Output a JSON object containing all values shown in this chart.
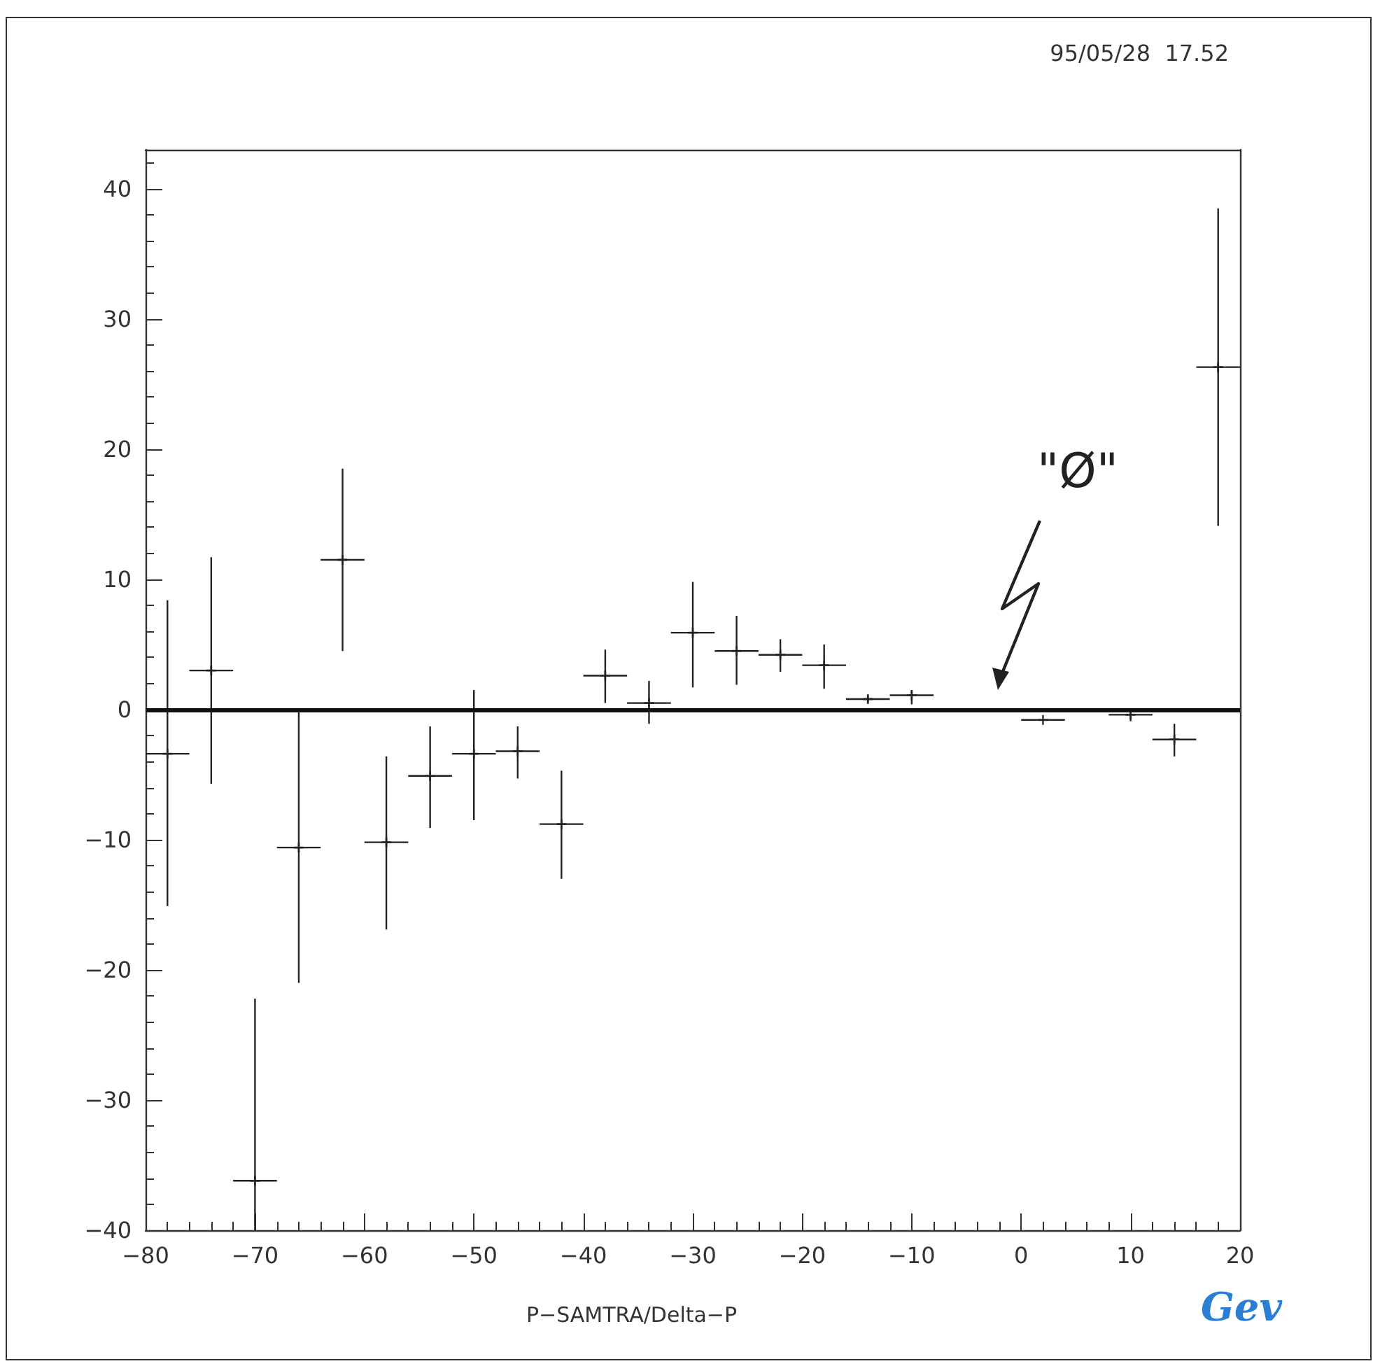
{
  "chart_data": {
    "type": "scatter",
    "xlabel": "P−SAMTRA/Delta−P",
    "marker": "cross",
    "grid": false,
    "legend": false,
    "x": [
      -78,
      -74,
      -70,
      -66,
      -62,
      -58,
      -54,
      -50,
      -46,
      -42,
      -38,
      -34,
      -30,
      -26,
      -22,
      -18,
      -14,
      -10,
      2,
      10,
      14,
      18
    ],
    "values": [
      -3.4,
      3.0,
      -36.2,
      -10.6,
      11.5,
      -10.2,
      -5.1,
      -3.4,
      -3.2,
      -8.8,
      2.6,
      0.5,
      5.9,
      4.5,
      4.2,
      3.4,
      0.8,
      1.1,
      -0.8,
      -0.4,
      -2.3,
      26.3
    ],
    "errors": [
      [
        -15.1,
        8.4
      ],
      [
        -5.7,
        11.7
      ],
      [
        -40,
        -22.2
      ],
      [
        -21,
        -0.2
      ],
      [
        4.5,
        18.5
      ],
      [
        -16.9,
        -3.6
      ],
      [
        -9.1,
        -1.3
      ],
      [
        -8.5,
        1.5
      ],
      [
        -5.3,
        -1.3
      ],
      [
        -13,
        -4.7
      ],
      [
        0.5,
        4.6
      ],
      [
        -1.1,
        2.2
      ],
      [
        1.7,
        9.8
      ],
      [
        1.9,
        7.2
      ],
      [
        2.9,
        5.4
      ],
      [
        1.6,
        5.0
      ],
      [
        0.5,
        1.1
      ],
      [
        0.4,
        1.5
      ],
      null,
      [
        -0.9,
        0
      ],
      [
        -3.6,
        -1.1
      ],
      [
        14.1,
        38.5
      ]
    ],
    "xerrors": [
      2,
      2,
      2,
      2,
      2,
      2,
      2,
      2,
      2,
      2,
      2,
      2,
      2,
      2,
      2,
      2,
      2,
      2,
      2,
      2,
      2,
      2
    ],
    "color": "#222222",
    "xlim": [
      -80,
      20
    ],
    "xticks": [
      -80,
      -70,
      -60,
      -50,
      -40,
      -30,
      -20,
      -10,
      0,
      10,
      20
    ],
    "ylim": [
      -40,
      43
    ],
    "yticks": [
      -40,
      -30,
      -20,
      -10,
      0,
      10,
      20,
      30,
      40
    ],
    "ref_lines": [
      {
        "axis": "y",
        "value": 0,
        "color": "#111111"
      }
    ],
    "annotations": [
      "95/05/28  17.52",
      "\"Ø\"",
      "Gev"
    ]
  }
}
